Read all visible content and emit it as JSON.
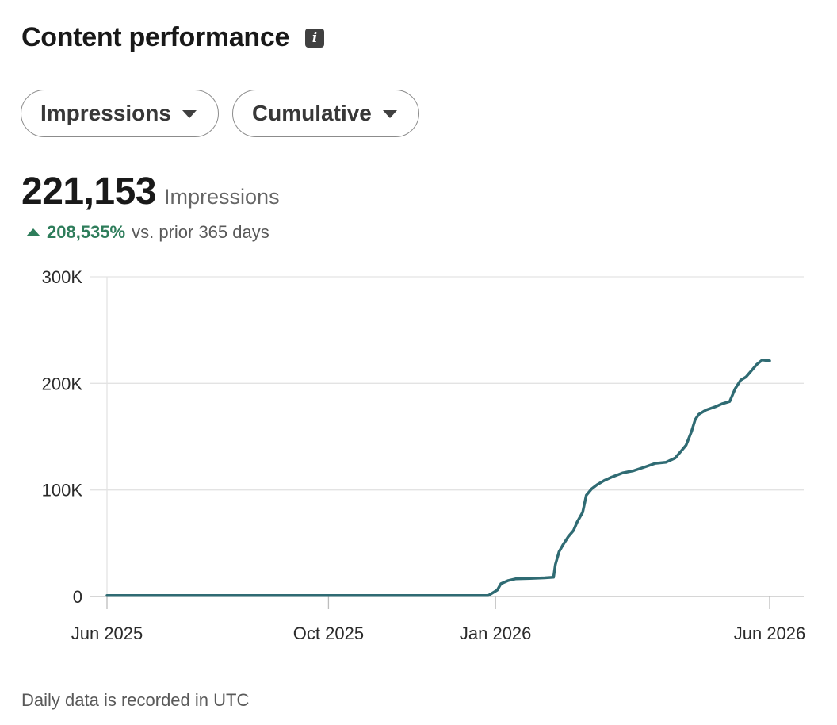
{
  "header": {
    "title": "Content performance",
    "info_icon": "info-icon"
  },
  "filters": [
    {
      "label": "Impressions",
      "icon": "caret-down-icon"
    },
    {
      "label": "Cumulative",
      "icon": "caret-down-icon"
    }
  ],
  "metric": {
    "value": "221,153",
    "unit": "Impressions",
    "change": "208,535%",
    "change_label": "vs. prior 365 days",
    "change_color": "#2e7d5b"
  },
  "chart_data": {
    "type": "line",
    "title": "",
    "xlabel": "",
    "ylabel": "",
    "ylim": [
      0,
      300000
    ],
    "y_ticks": [
      0,
      100000,
      200000,
      300000
    ],
    "y_tick_labels": [
      "0",
      "100K",
      "200K",
      "300K"
    ],
    "x_ticks": [
      "2025-06-01",
      "2025-10-01",
      "2026-01-01",
      "2026-06-01"
    ],
    "x_tick_labels": [
      "Jun 2025",
      "Oct 2025",
      "Jan 2026",
      "Jun 2026"
    ],
    "grid": true,
    "line_color": "#2f6b73",
    "series": [
      {
        "x": [
          "2025-06-01",
          "2025-12-28",
          "2025-12-31",
          "2026-01-02",
          "2026-01-04",
          "2026-01-08",
          "2026-01-12",
          "2026-01-20",
          "2026-01-28",
          "2026-02-02",
          "2026-02-03",
          "2026-02-05",
          "2026-02-07",
          "2026-02-10",
          "2026-02-13",
          "2026-02-15",
          "2026-02-18",
          "2026-02-20",
          "2026-02-23",
          "2026-02-26",
          "2026-03-02",
          "2026-03-06",
          "2026-03-12",
          "2026-03-18",
          "2026-03-25",
          "2026-03-30",
          "2026-04-05",
          "2026-04-10",
          "2026-04-14",
          "2026-04-16",
          "2026-04-19",
          "2026-04-21",
          "2026-04-23",
          "2026-04-27",
          "2026-05-02",
          "2026-05-06",
          "2026-05-10",
          "2026-05-13",
          "2026-05-16",
          "2026-05-19",
          "2026-05-22",
          "2026-05-25",
          "2026-05-28",
          "2026-06-01"
        ],
        "y": [
          1000,
          1000,
          4000,
          6000,
          12000,
          15000,
          16500,
          17000,
          17500,
          18000,
          30000,
          42000,
          48000,
          56000,
          62000,
          70000,
          79000,
          95000,
          101000,
          105000,
          109000,
          112000,
          116000,
          118000,
          122000,
          125000,
          126000,
          130000,
          138000,
          142000,
          155000,
          166000,
          171000,
          175000,
          178000,
          181000,
          183000,
          195000,
          203000,
          206000,
          212000,
          218000,
          222000,
          221153
        ]
      }
    ]
  },
  "footer": {
    "note": "Daily data is recorded in UTC"
  }
}
